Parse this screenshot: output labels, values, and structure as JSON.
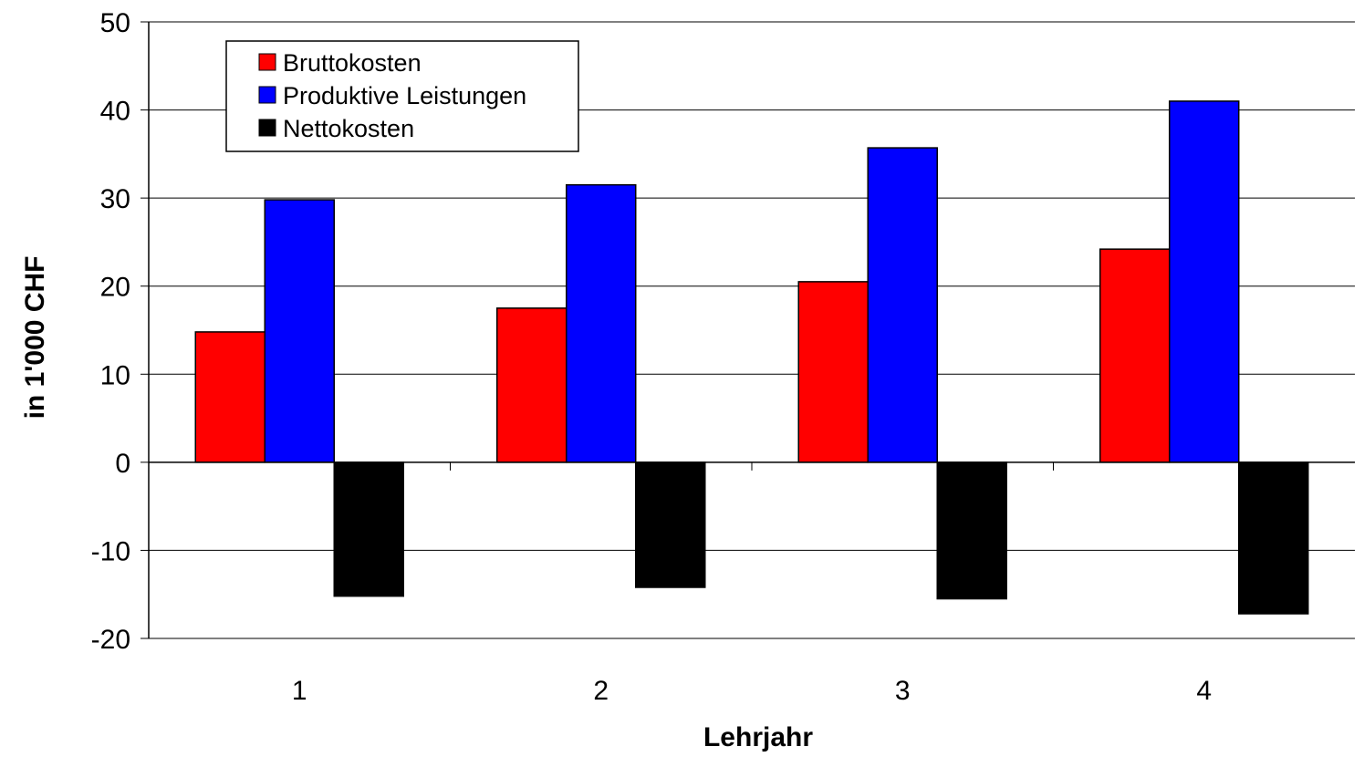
{
  "chart_data": {
    "type": "bar",
    "title": "",
    "xlabel": "Lehrjahr",
    "ylabel": "in 1'000 CHF",
    "categories": [
      "1",
      "2",
      "3",
      "4"
    ],
    "ylim": [
      -20,
      50
    ],
    "yticks": [
      -20,
      -10,
      0,
      10,
      20,
      30,
      40,
      50
    ],
    "grid": true,
    "legend_position": "top-left",
    "series": [
      {
        "name": "Bruttokosten",
        "color": "#ff0000",
        "values": [
          14.8,
          17.5,
          20.5,
          24.2
        ]
      },
      {
        "name": "Produktive Leistungen",
        "color": "#0000ff",
        "values": [
          29.8,
          31.5,
          35.7,
          41.0
        ]
      },
      {
        "name": "Nettokosten",
        "color": "#000000",
        "values": [
          -15.2,
          -14.2,
          -15.5,
          -17.2
        ]
      }
    ]
  }
}
